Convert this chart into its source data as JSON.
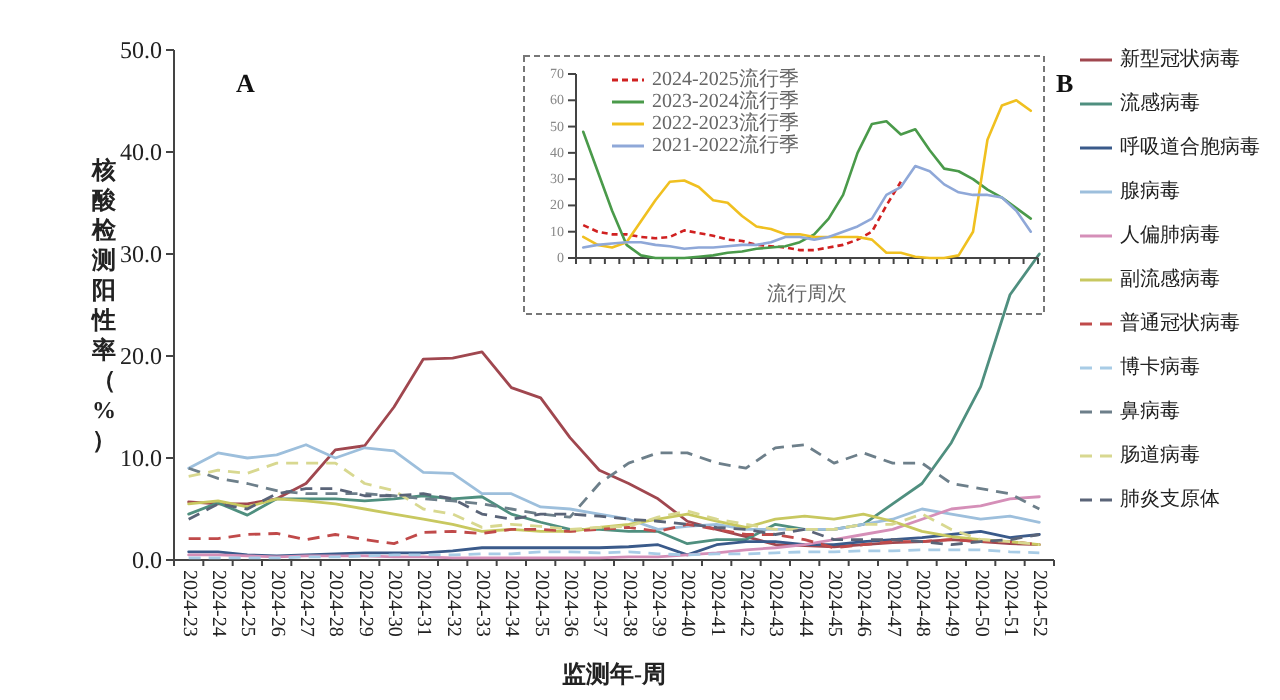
{
  "chart_data": [
    {
      "type": "line",
      "xlabel": "监测年-周",
      "ylabel": "核酸检测阳性率（%）",
      "annotations": [
        "A"
      ],
      "legend": "right",
      "categories": [
        "2024-23",
        "2024-24",
        "2024-25",
        "2024-26",
        "2024-27",
        "2024-28",
        "2024-29",
        "2024-30",
        "2024-31",
        "2024-32",
        "2024-33",
        "2024-34",
        "2024-35",
        "2024-36",
        "2024-37",
        "2024-38",
        "2024-39",
        "2024-40",
        "2024-41",
        "2024-42",
        "2024-43",
        "2024-44",
        "2024-45",
        "2024-46",
        "2024-47",
        "2024-48",
        "2024-49",
        "2024-50",
        "2024-51",
        "2024-52"
      ],
      "ylim": [
        0,
        50
      ],
      "yticks": [
        {
          "value": 0,
          "label": "0.0"
        },
        {
          "value": 10,
          "label": "10.0"
        },
        {
          "value": 20,
          "label": "20.0"
        },
        {
          "value": 30,
          "label": "30.0"
        },
        {
          "value": 40,
          "label": "40.0"
        },
        {
          "value": 50,
          "label": "50.0"
        }
      ],
      "series": [
        {
          "name": "新型冠状病毒",
          "color": "#a0474f",
          "line_style": "solid",
          "values": [
            5.7,
            5.5,
            5.5,
            6,
            7.5,
            10.8,
            11.2,
            15,
            19.7,
            19.8,
            20.4,
            16.9,
            15.9,
            12,
            8.8,
            7.5,
            6,
            3.8,
            3,
            2.3,
            1.5,
            1.4,
            1.3,
            1.5,
            1.7,
            1.8,
            2,
            1.8,
            1.6,
            1.5
          ]
        },
        {
          "name": "流感病毒",
          "color": "#4f8f7f",
          "line_style": "solid",
          "values": [
            4.5,
            5.6,
            4.4,
            6,
            6,
            6,
            5.8,
            6,
            6.3,
            6,
            6.2,
            4.5,
            3.7,
            3,
            3,
            2.8,
            2.8,
            1.6,
            2,
            2,
            3.5,
            3,
            3,
            3.5,
            5.5,
            7.5,
            11.5,
            17,
            26,
            30
          ]
        },
        {
          "name": "呼吸道合胞病毒",
          "color": "#3a5a8a",
          "line_style": "solid",
          "values": [
            0.8,
            0.8,
            0.5,
            0.4,
            0.5,
            0.6,
            0.7,
            0.7,
            0.7,
            0.9,
            1.2,
            1.2,
            1.2,
            1.2,
            1.2,
            1.3,
            1.5,
            0.5,
            1.5,
            1.8,
            1.8,
            1.5,
            1.5,
            1.8,
            2,
            2.2,
            2.5,
            2.8,
            2.2,
            2.5
          ]
        },
        {
          "name": "腺病毒",
          "color": "#9dbfdc",
          "line_style": "solid",
          "values": [
            9,
            10.5,
            10,
            10.3,
            11.3,
            10,
            11,
            10.7,
            8.6,
            8.5,
            6.5,
            6.5,
            5.2,
            5,
            4.5,
            4,
            3,
            3.3,
            3.5,
            3,
            3,
            3,
            3,
            3.5,
            4,
            5,
            4.5,
            4,
            4.3,
            3.7
          ]
        },
        {
          "name": "人偏肺病毒",
          "color": "#d58fb8",
          "line_style": "solid",
          "values": [
            0.5,
            0.5,
            0.4,
            0.3,
            0.4,
            0.4,
            0.4,
            0.3,
            0.3,
            0.2,
            0.2,
            0.2,
            0.2,
            0.2,
            0.2,
            0.3,
            0.3,
            0.5,
            0.7,
            1,
            1.2,
            1.5,
            2,
            2.5,
            3,
            4,
            5,
            5.3,
            6,
            6.2
          ]
        },
        {
          "name": "副流感病毒",
          "color": "#c8c860",
          "line_style": "solid",
          "values": [
            5.5,
            5.8,
            5.2,
            6,
            5.8,
            5.5,
            5,
            4.5,
            4,
            3.5,
            2.8,
            3,
            2.8,
            2.8,
            3.2,
            3.5,
            4,
            4.5,
            3.8,
            3.2,
            4,
            4.3,
            4,
            4.5,
            3.8,
            2.8,
            2.3,
            2,
            1.8,
            1.5
          ]
        },
        {
          "name": "普通冠状病毒",
          "color": "#c04a4a",
          "line_style": "dashed",
          "values": [
            2.1,
            2.1,
            2.5,
            2.6,
            2,
            2.5,
            2,
            1.6,
            2.7,
            2.8,
            2.6,
            3,
            3,
            2.8,
            3,
            3.2,
            2.8,
            3.5,
            3,
            2.5,
            2.5,
            2,
            1.2,
            1.5,
            1.8,
            1.8,
            2,
            1.8,
            1.8,
            1.5
          ]
        },
        {
          "name": "博卡病毒",
          "color": "#a8cce6",
          "line_style": "dashed",
          "values": [
            0.2,
            0.2,
            0.2,
            0.2,
            0.3,
            0.3,
            0.4,
            0.5,
            0.5,
            0.5,
            0.6,
            0.6,
            0.8,
            0.8,
            0.7,
            0.8,
            0.6,
            0.5,
            0.6,
            0.6,
            0.7,
            0.8,
            0.8,
            0.9,
            0.9,
            1,
            1,
            1,
            0.8,
            0.7
          ]
        },
        {
          "name": "鼻病毒",
          "color": "#6d7f8a",
          "line_style": "dashed",
          "values": [
            9,
            8,
            7.5,
            6.8,
            6.5,
            6.5,
            6.5,
            6.3,
            6,
            5.8,
            5.5,
            5,
            4.5,
            4.2,
            7.5,
            9.5,
            10.5,
            10.5,
            9.5,
            9,
            11,
            11.3,
            9.5,
            10.5,
            9.5,
            9.5,
            7.5,
            7,
            6.5,
            5
          ]
        },
        {
          "name": "肠道病毒",
          "color": "#d8d890",
          "line_style": "dashed",
          "values": [
            8.2,
            8.8,
            8.5,
            9.5,
            9.5,
            9.5,
            7.5,
            6.8,
            5,
            4.5,
            3.2,
            3.5,
            3.3,
            3,
            3.2,
            3.3,
            4.2,
            4.8,
            4,
            3.5,
            3,
            3,
            3,
            3.5,
            3.5,
            4.5,
            3,
            2,
            1.8,
            1.5
          ]
        },
        {
          "name": "肺炎支原体",
          "color": "#5a6478",
          "line_style": "dashed",
          "values": [
            4,
            5.5,
            5,
            6.5,
            7,
            7,
            6.3,
            6.3,
            6.5,
            6,
            4.5,
            4,
            4.5,
            4.5,
            4.3,
            4,
            3.8,
            3.5,
            3.2,
            3,
            2.5,
            3,
            2,
            2,
            2,
            1.8,
            1.5,
            1.8,
            2,
            2.5
          ]
        }
      ]
    },
    {
      "type": "line",
      "xlabel": "流行周次",
      "annotations": [
        "B"
      ],
      "legend": "top left",
      "categories": [
        null,
        null,
        null,
        null,
        null,
        null,
        null,
        null,
        null,
        null,
        null,
        null,
        null,
        null,
        null,
        null,
        null,
        null,
        null,
        null,
        null,
        null,
        null,
        null,
        null,
        null,
        null,
        null,
        null,
        null,
        null,
        null
      ],
      "ylim": [
        0,
        70
      ],
      "yticks": [
        0,
        10,
        20,
        30,
        40,
        50,
        60,
        70
      ],
      "series": [
        {
          "name": "2024-2025流行季",
          "color": "#d02020",
          "line_style": "dotted",
          "values": [
            12.5,
            10,
            9,
            9,
            8,
            7.5,
            8,
            10.5,
            9.5,
            8.5,
            7,
            6.5,
            5,
            4.5,
            4,
            3,
            3,
            4,
            5,
            7,
            10,
            20,
            29,
            null,
            null,
            null,
            null,
            null,
            null,
            null,
            null,
            null
          ]
        },
        {
          "name": "2023-2024流行季",
          "color": "#4a9a4a",
          "line_style": "solid",
          "values": [
            48,
            33,
            18,
            5,
            1,
            0,
            0,
            0,
            0.5,
            1,
            2,
            2.5,
            3.5,
            4,
            4.5,
            6,
            9,
            15,
            24,
            40,
            51,
            52,
            47,
            49,
            41,
            34,
            33,
            30,
            26,
            23,
            19,
            15
          ]
        },
        {
          "name": "2022-2023流行季",
          "color": "#f0c020",
          "line_style": "solid",
          "values": [
            8,
            5,
            4,
            6,
            14,
            22,
            29,
            29.5,
            27,
            22,
            21,
            16,
            12,
            11,
            9,
            9,
            8,
            8,
            8,
            8,
            7,
            2,
            2,
            0.5,
            0,
            0,
            1,
            10,
            45,
            58,
            60,
            56
          ]
        },
        {
          "name": "2021-2022流行季",
          "color": "#8fa8d8",
          "line_style": "solid",
          "values": [
            4,
            5,
            5.5,
            6,
            6,
            5,
            4.5,
            3.5,
            4,
            4,
            4.5,
            5,
            5,
            6,
            8,
            8,
            7,
            8,
            10,
            12,
            15,
            24,
            27,
            35,
            33,
            28,
            25,
            24,
            24,
            23,
            18,
            10
          ]
        }
      ]
    }
  ]
}
